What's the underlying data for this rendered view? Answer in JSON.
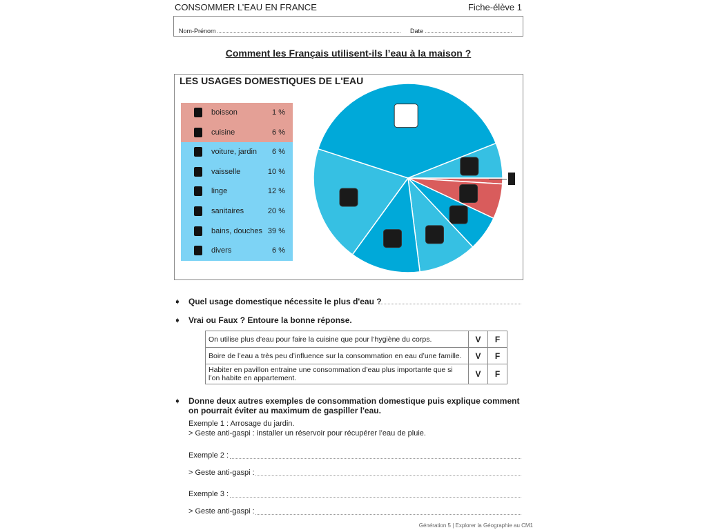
{
  "header": {
    "subject": "CONSOMMER L’EAU EN FRANCE",
    "sheet": "Fiche-élève 1"
  },
  "identity": {
    "name_label": "Nom-Prénom",
    "date_label": "Date"
  },
  "title": "Comment les Français utilisent-ils l’eau à la maison ?",
  "chart_data": {
    "type": "pie",
    "title": "LES USAGES DOMESTIQUES DE L'EAU",
    "slices": [
      {
        "label": "boisson",
        "value": 1,
        "display": "1 %",
        "color": "#d95c5c",
        "icon": "glass-icon"
      },
      {
        "label": "cuisine",
        "value": 6,
        "display": "6 %",
        "color": "#d95c5c",
        "icon": "pot-icon"
      },
      {
        "label": "voiture, jardin",
        "value": 6,
        "display": "6 %",
        "color": "#00a9d9",
        "icon": "watering-can-icon"
      },
      {
        "label": "vaisselle",
        "value": 10,
        "display": "10 %",
        "color": "#36c0e3",
        "icon": "dish-sponge-icon"
      },
      {
        "label": "linge",
        "value": 12,
        "display": "12 %",
        "color": "#00a9d9",
        "icon": "washing-machine-icon"
      },
      {
        "label": "sanitaires",
        "value": 20,
        "display": "20 %",
        "color": "#36c0e3",
        "icon": "toilet-icon"
      },
      {
        "label": "bains, douches",
        "value": 39,
        "display": "39 %",
        "color": "#00a9d9",
        "icon": "shower-icon"
      },
      {
        "label": "divers",
        "value": 6,
        "display": "6 %",
        "color": "#36c0e3",
        "icon": "tap-icon"
      }
    ],
    "legend_colors": {
      "red_group": "#e4a096",
      "blue_group": "#7dd3f5"
    },
    "legend": "left"
  },
  "questions": {
    "q1": "Quel usage domestique nécessite le plus d'eau ?",
    "q2": "Vrai ou Faux ? Entoure la bonne réponse.",
    "statements": [
      {
        "text": "On utilise plus d’eau pour faire la cuisine que pour l’hygiène du corps.",
        "v": "V",
        "f": "F"
      },
      {
        "text": "Boire de l’eau a très peu d’influence sur la consommation en eau d’une famille.",
        "v": "V",
        "f": "F"
      },
      {
        "text": "Habiter en pavillon entraine une consommation d’eau plus importante que si l’on habite en appartement.",
        "v": "V",
        "f": "F"
      }
    ],
    "q3_line1": "Donne deux autres exemples de consommation domestique puis explique comment",
    "q3_line2": "on pourrait éviter au maximum de gaspiller l'eau.",
    "example1": "Exemple 1 : Arrosage du jardin.",
    "gesture1": "> Geste anti-gaspi : installer un réservoir pour récupérer l’eau de pluie.",
    "example2": "Exemple 2 :",
    "gesture2": "> Geste anti-gaspi :",
    "example3": "Exemple 3 :",
    "gesture3": "> Geste anti-gaspi :"
  },
  "footer": "Génération 5 | Explorer la Géographie au CM1"
}
